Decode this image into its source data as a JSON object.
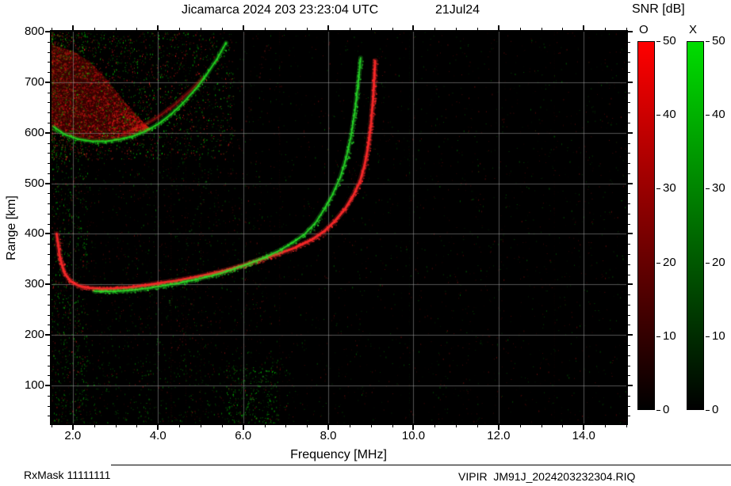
{
  "header": {
    "title": "Jicamarca 2024 203 23:23:04 UTC",
    "date": "21Jul24"
  },
  "colorbar": {
    "title": "SNR [dB]",
    "max": 50,
    "bars": [
      {
        "label": "O",
        "color_low": "#000000",
        "color_high": "#ff0000",
        "ticks": [
          0,
          10,
          20,
          30,
          40,
          50
        ]
      },
      {
        "label": "X",
        "color_low": "#000000",
        "color_high": "#00dd00",
        "ticks": [
          0,
          10,
          20,
          30,
          40,
          50
        ]
      }
    ]
  },
  "footer": {
    "left": "RxMask 11111111",
    "right": "VIPIR  JM91J_2024203232304.RIQ"
  },
  "chart_data": {
    "type": "heatmap",
    "title": "Jicamarca 2024 203 23:23:04 UTC",
    "date": "21Jul24",
    "xlabel": "Frequency [MHz]",
    "ylabel": "Range [km]",
    "xlim": [
      1.5,
      15.0
    ],
    "ylim": [
      25,
      800
    ],
    "x_ticks": [
      2,
      4,
      6,
      8,
      10,
      12,
      14
    ],
    "x_tick_labels": [
      "2.0",
      "4.0",
      "6.0",
      "8.0",
      "10.0",
      "12.0",
      "14.0"
    ],
    "y_ticks": [
      100,
      200,
      300,
      400,
      500,
      600,
      700,
      800
    ],
    "grid": true,
    "grid_color": "#9a9a9a",
    "series": [
      {
        "name": "second-hop-o-trace",
        "color": "#cc1414",
        "width": 2,
        "jitter": 3,
        "speckle": 1,
        "alpha": 0.4,
        "density": 0.5,
        "points": [
          [
            3.2,
            598
          ],
          [
            3.6,
            612
          ],
          [
            4.0,
            631
          ],
          [
            4.4,
            656
          ],
          [
            4.75,
            682
          ],
          [
            5.05,
            708
          ]
        ]
      },
      {
        "name": "second-hop-x-trace",
        "color": "#22dd22",
        "width": 2,
        "jitter": 2,
        "speckle": 2,
        "alpha": 0.85,
        "density": 0.7,
        "points": [
          [
            1.55,
            612
          ],
          [
            1.8,
            597
          ],
          [
            2.1,
            588
          ],
          [
            2.45,
            583
          ],
          [
            2.8,
            583
          ],
          [
            3.1,
            587
          ],
          [
            3.4,
            593
          ],
          [
            3.7,
            603
          ],
          [
            4.0,
            617
          ],
          [
            4.3,
            636
          ],
          [
            4.6,
            660
          ],
          [
            4.9,
            688
          ],
          [
            5.15,
            716
          ],
          [
            5.4,
            748
          ],
          [
            5.6,
            778
          ]
        ]
      },
      {
        "name": "f-layer-o-trace",
        "color": "#ff2a2a",
        "width": 3,
        "jitter": 3,
        "speckle": 3,
        "alpha": 0.9,
        "density": 0.85,
        "points": [
          [
            1.62,
            400
          ],
          [
            1.7,
            352
          ],
          [
            1.8,
            323
          ],
          [
            1.95,
            306
          ],
          [
            2.15,
            297
          ],
          [
            2.4,
            293
          ],
          [
            2.7,
            291
          ],
          [
            3.0,
            292
          ],
          [
            3.3,
            294
          ],
          [
            3.6,
            297
          ],
          [
            4.0,
            302
          ],
          [
            4.4,
            307
          ],
          [
            4.8,
            313
          ],
          [
            5.2,
            320
          ],
          [
            5.6,
            328
          ],
          [
            6.0,
            338
          ],
          [
            6.4,
            349
          ],
          [
            6.8,
            360
          ],
          [
            7.2,
            372
          ],
          [
            7.6,
            388
          ],
          [
            7.9,
            405
          ],
          [
            8.15,
            425
          ],
          [
            8.4,
            450
          ],
          [
            8.6,
            478
          ],
          [
            8.75,
            505
          ],
          [
            8.85,
            535
          ],
          [
            8.93,
            570
          ],
          [
            9.0,
            615
          ],
          [
            9.05,
            665
          ],
          [
            9.08,
            710
          ],
          [
            9.1,
            742
          ]
        ]
      },
      {
        "name": "f-layer-x-trace",
        "color": "#2ae62a",
        "width": 2,
        "jitter": 3,
        "speckle": 3,
        "alpha": 0.8,
        "density": 0.7,
        "points": [
          [
            2.5,
            287
          ],
          [
            2.9,
            286
          ],
          [
            3.3,
            288
          ],
          [
            3.7,
            292
          ],
          [
            4.1,
            297
          ],
          [
            4.5,
            303
          ],
          [
            4.9,
            310
          ],
          [
            5.3,
            318
          ],
          [
            5.7,
            328
          ],
          [
            6.1,
            340
          ],
          [
            6.5,
            353
          ],
          [
            6.85,
            367
          ],
          [
            7.15,
            382
          ],
          [
            7.45,
            400
          ],
          [
            7.7,
            422
          ],
          [
            7.9,
            448
          ],
          [
            8.1,
            478
          ],
          [
            8.28,
            512
          ],
          [
            8.42,
            550
          ],
          [
            8.53,
            592
          ],
          [
            8.62,
            640
          ],
          [
            8.69,
            690
          ],
          [
            8.74,
            730
          ],
          [
            8.76,
            748
          ]
        ]
      }
    ],
    "streaks": [
      {
        "name": "oblique-echo-streak-1",
        "color": "#20b020",
        "line": false,
        "speckle": 1,
        "jitter": 2,
        "alpha": 0.5,
        "density": 0.3,
        "points": [
          [
            3.8,
            125
          ],
          [
            6.05,
            770
          ]
        ]
      },
      {
        "name": "oblique-echo-streak-2",
        "color": "#b02020",
        "line": false,
        "speckle": 1,
        "jitter": 2,
        "alpha": 0.4,
        "density": 0.25,
        "points": [
          [
            4.3,
            125
          ],
          [
            6.55,
            770
          ]
        ]
      },
      {
        "name": "oblique-echo-streak-3",
        "color": "#20c020",
        "line": false,
        "speckle": 1,
        "jitter": 2,
        "alpha": 0.6,
        "density": 0.4,
        "points": [
          [
            5.85,
            25
          ],
          [
            6.7,
            150
          ]
        ]
      }
    ],
    "spread_band": {
      "name": "second-hop-spread-region",
      "lower": [
        [
          1.5,
          612
        ],
        [
          2.0,
          590
        ],
        [
          2.5,
          583
        ],
        [
          3.0,
          585
        ],
        [
          3.4,
          593
        ],
        [
          3.8,
          608
        ]
      ],
      "upper": [
        [
          1.5,
          775
        ],
        [
          2.0,
          762
        ],
        [
          2.4,
          740
        ],
        [
          2.8,
          706
        ],
        [
          3.2,
          663
        ],
        [
          3.8,
          608
        ]
      ],
      "fill_rgba": "rgba(120,0,0,0.45)",
      "dot_count": 2300,
      "green_fraction": 0.12
    },
    "noise": {
      "base": {
        "count": 3400,
        "green_ratio": 0.45,
        "max_alpha": 0.32
      },
      "regions": [
        {
          "name": "topleft-spread",
          "f": [
            1.5,
            5.8
          ],
          "r": [
            548,
            800
          ],
          "count": 2600,
          "green_ratio": 0.5,
          "max_alpha": 0.7,
          "bias_left": true
        },
        {
          "name": "left-edge-column",
          "f": [
            1.5,
            2.35
          ],
          "r": [
            25,
            800
          ],
          "count": 900,
          "green_ratio": 0.75,
          "max_alpha": 0.65
        },
        {
          "name": "bottom-left-band",
          "f": [
            1.5,
            7.2
          ],
          "r": [
            25,
            170
          ],
          "count": 520,
          "green_ratio": 0.8,
          "max_alpha": 0.45
        },
        {
          "name": "bottom-center-cluster",
          "f": [
            5.6,
            6.8
          ],
          "r": [
            25,
            140
          ],
          "count": 260,
          "green_ratio": 0.9,
          "max_alpha": 0.75
        },
        {
          "name": "midleft-sparse",
          "f": [
            1.5,
            6.5
          ],
          "r": [
            170,
            545
          ],
          "count": 700,
          "green_ratio": 0.45,
          "max_alpha": 0.35
        }
      ],
      "rfi_lines": [
        {
          "f": 4.3,
          "color": "#ff2020",
          "alpha": 0.07
        },
        {
          "f": 4.65,
          "color": "#ff2020",
          "alpha": 0.06
        },
        {
          "f": 5.0,
          "color": "#ff2020",
          "alpha": 0.05
        },
        {
          "f": 6.85,
          "color": "#ff2020",
          "alpha": 0.07
        },
        {
          "f": 9.9,
          "color": "#20ff20",
          "alpha": 0.04
        },
        {
          "f": 13.3,
          "color": "#ff2020",
          "alpha": 0.04
        }
      ]
    }
  }
}
